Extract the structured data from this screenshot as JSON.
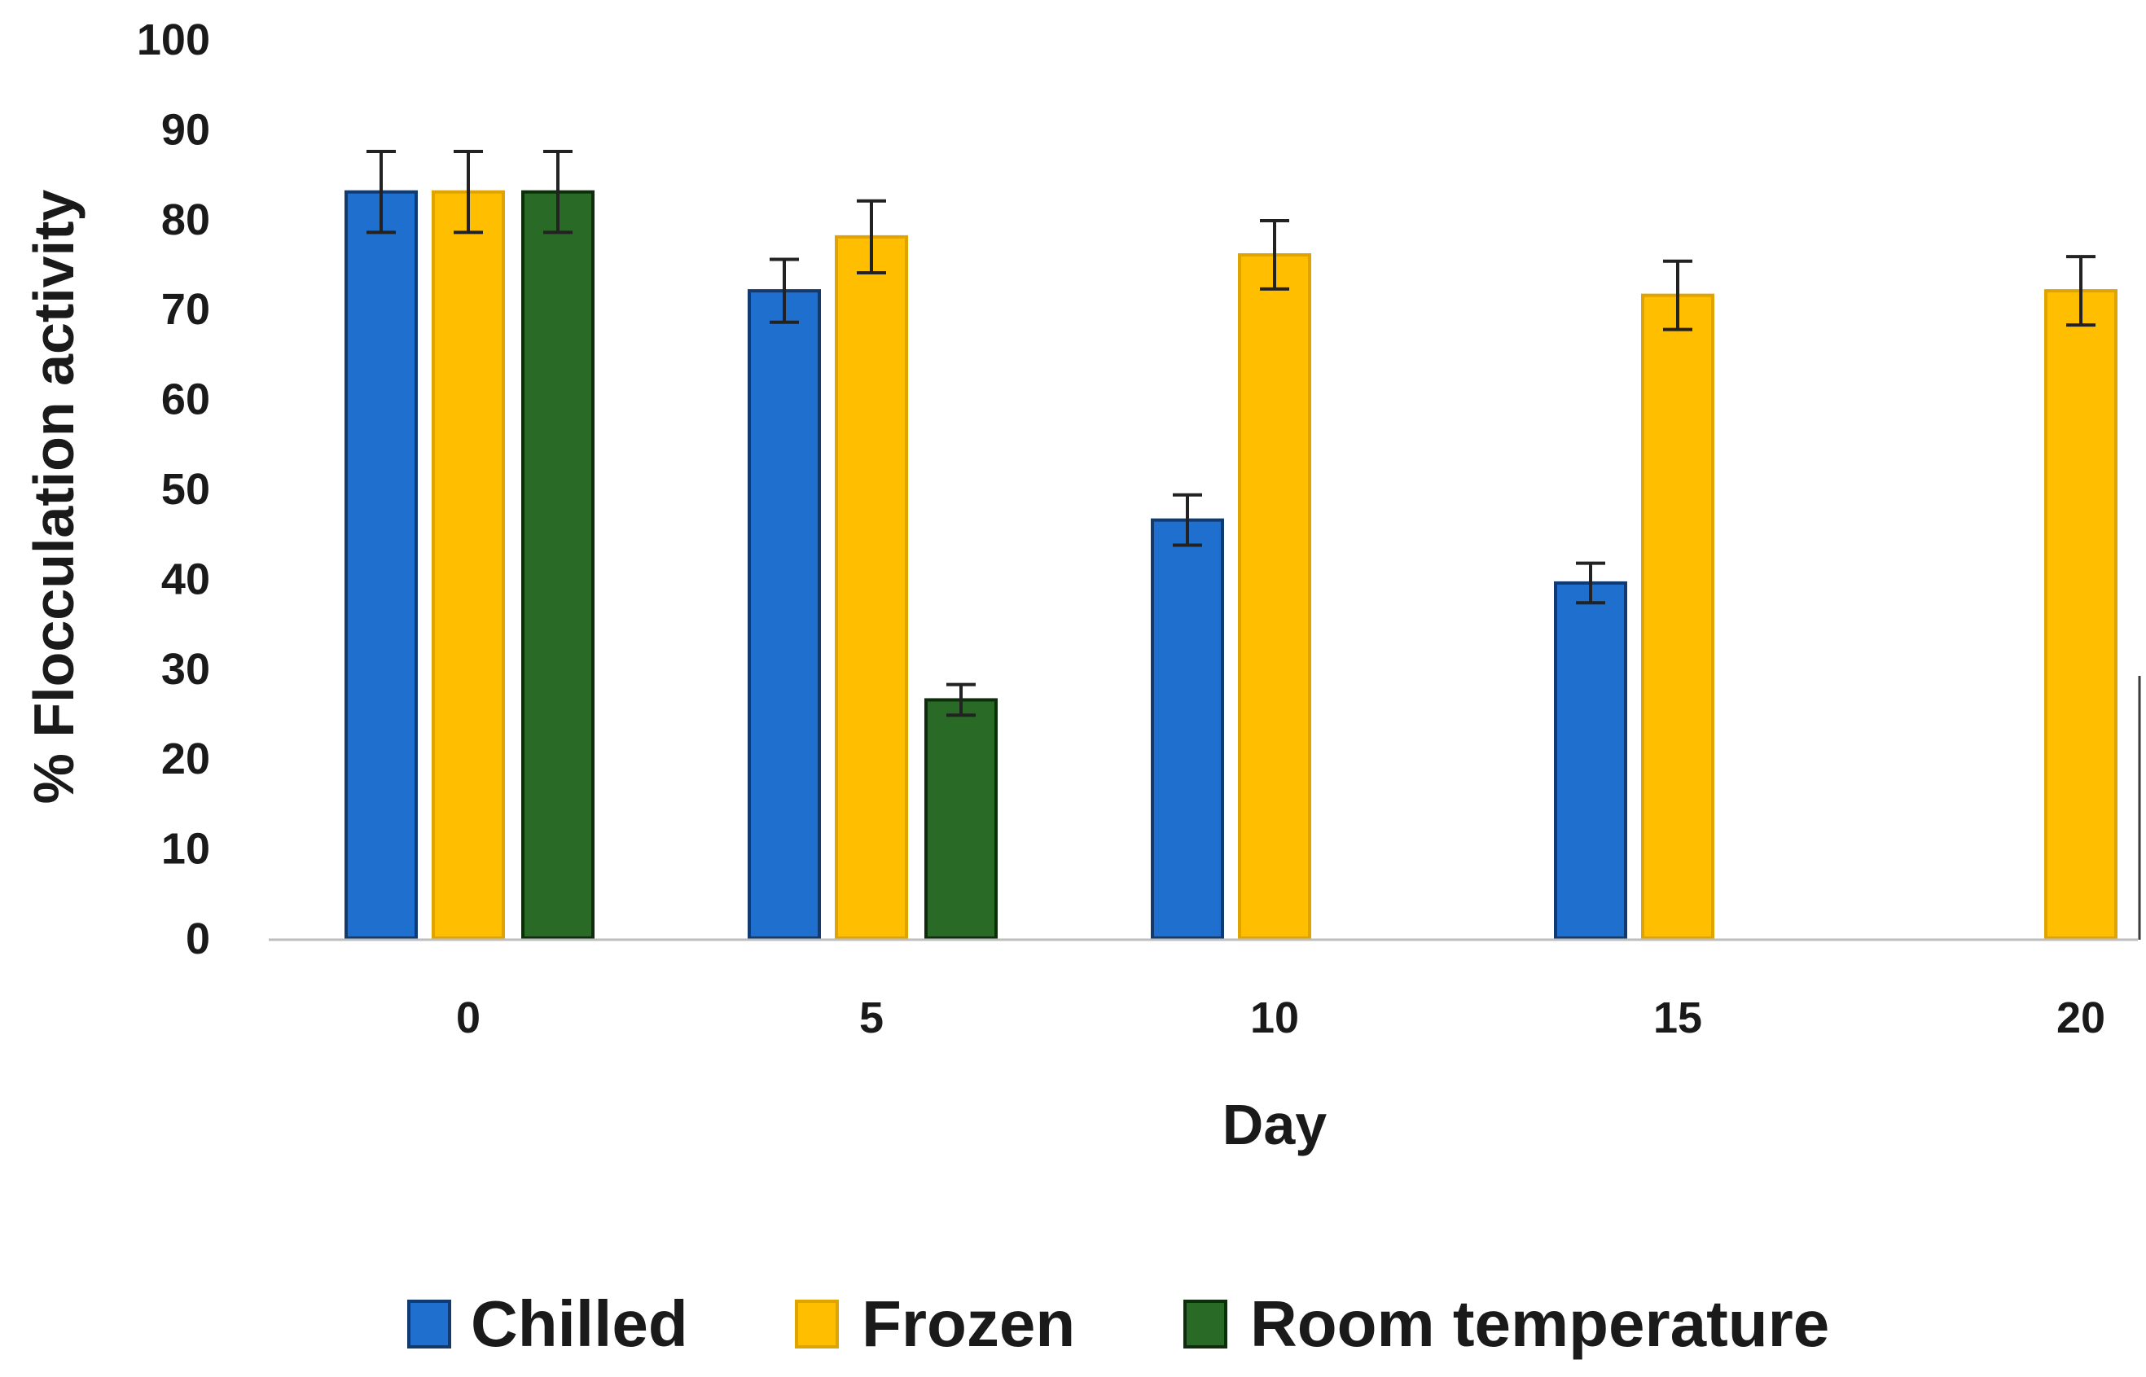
{
  "chart_data": {
    "type": "bar",
    "title": "",
    "xlabel": "Day",
    "ylabel": "% Flocculation activity",
    "categories": [
      "0",
      "5",
      "10",
      "15",
      "20"
    ],
    "ylim": [
      0,
      100
    ],
    "yticks": [
      "0",
      "10",
      "20",
      "30",
      "40",
      "50",
      "60",
      "70",
      "80",
      "90",
      "100"
    ],
    "grid": false,
    "legend_position": "bottom",
    "series": [
      {
        "name": "Chilled",
        "color": "#1f6fce",
        "edge": "#103a70",
        "values": [
          83,
          72,
          46.5,
          39.5,
          null
        ],
        "errors": [
          4.5,
          3.5,
          2.8,
          2.2,
          null
        ]
      },
      {
        "name": "Frozen",
        "color": "#ffbf00",
        "edge": "#e0a400",
        "values": [
          83,
          78,
          76,
          71.5,
          72
        ],
        "errors": [
          4.5,
          4,
          3.8,
          3.8,
          3.8
        ]
      },
      {
        "name": "Room temperature",
        "color": "#2a6a27",
        "edge": "#0d2d0b",
        "values": [
          83,
          26.5,
          null,
          null,
          null
        ],
        "errors": [
          4.5,
          1.7,
          null,
          null,
          null
        ]
      }
    ]
  }
}
